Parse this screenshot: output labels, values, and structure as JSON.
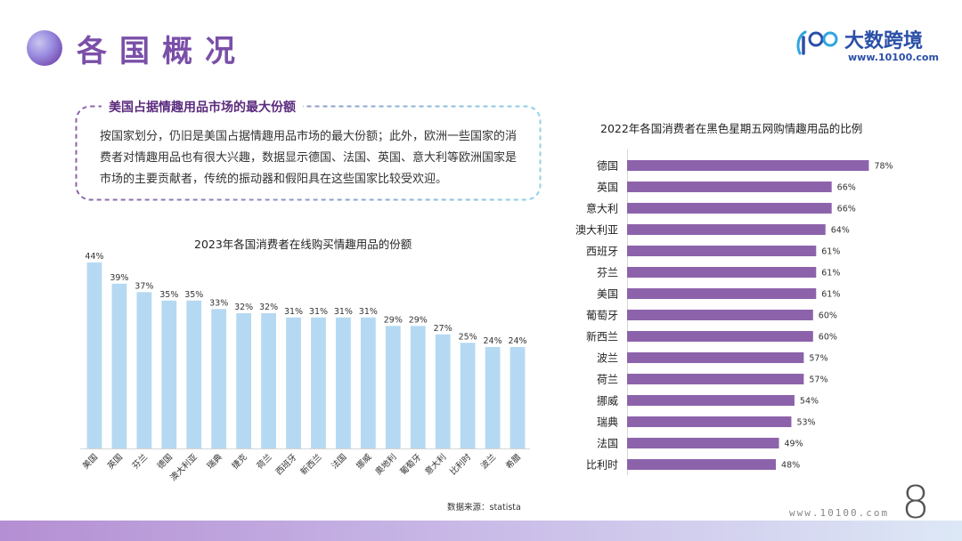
{
  "page": {
    "title": "各国概况",
    "logo_name": "大数跨境",
    "logo_url": "www.10100.com",
    "footer_url": "www.10100.com",
    "page_number": "8",
    "source_note": "数据来源：statista"
  },
  "colors": {
    "accent": "#7a4fa8",
    "bar_2023": "#b5d9f2",
    "bar_2022": "#8c63ab",
    "callout_border_left": "#8c63ab",
    "callout_border_right": "#8fd3e8"
  },
  "callout": {
    "title": "美国占据情趣用品市场的最大份额",
    "body": "按国家划分，仍旧是美国占据情趣用品市场的最大份额；此外，欧洲一些国家的消费者对情趣用品也有很大兴趣，数据显示德国、法国、英国、意大利等欧洲国家是市场的主要贡献者，传统的振动器和假阳具在这些国家比较受欢迎。"
  },
  "chart_data": [
    {
      "type": "bar",
      "orientation": "vertical",
      "title": "2023年各国消费者在线购买情趣用品的份额",
      "categories": [
        "美国",
        "英国",
        "芬兰",
        "德国",
        "澳大利亚",
        "瑞典",
        "捷克",
        "荷兰",
        "西班牙",
        "新西兰",
        "法国",
        "挪威",
        "奥地利",
        "葡萄牙",
        "意大利",
        "比利时",
        "波兰",
        "希腊"
      ],
      "values": [
        44,
        39,
        37,
        35,
        35,
        33,
        32,
        32,
        31,
        31,
        31,
        31,
        29,
        29,
        27,
        25,
        24,
        24
      ],
      "value_labels": [
        "44%",
        "39%",
        "37%",
        "35%",
        "35%",
        "33%",
        "32%",
        "32%",
        "31%",
        "31%",
        "31%",
        "31%",
        "29%",
        "29%",
        "27%",
        "25%",
        "24%",
        "24%"
      ],
      "ylim": [
        0,
        50
      ],
      "grid": false
    },
    {
      "type": "bar",
      "orientation": "horizontal",
      "title": "2022年各国消费者在黑色星期五网购情趣用品的比例",
      "categories": [
        "德国",
        "英国",
        "意大利",
        "澳大利亚",
        "西班牙",
        "芬兰",
        "美国",
        "葡萄牙",
        "新西兰",
        "波兰",
        "荷兰",
        "挪威",
        "瑞典",
        "法国",
        "比利时"
      ],
      "values": [
        78,
        66,
        66,
        64,
        61,
        61,
        61,
        60,
        60,
        57,
        57,
        54,
        53,
        49,
        48
      ],
      "value_labels": [
        "78%",
        "66%",
        "66%",
        "64%",
        "61%",
        "61%",
        "61%",
        "60%",
        "60%",
        "57%",
        "57%",
        "54%",
        "53%",
        "49%",
        "48%"
      ],
      "xlim": [
        0,
        100
      ],
      "grid": false
    }
  ]
}
